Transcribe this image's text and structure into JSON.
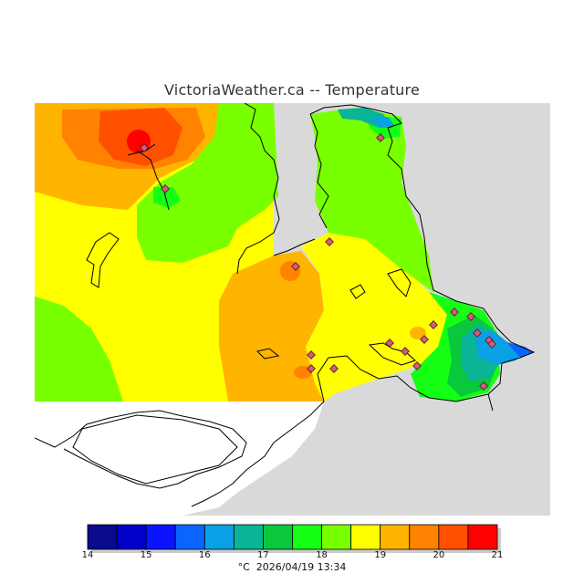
{
  "title": "VictoriaWeather.ca -- Temperature",
  "unit": "°C",
  "timestamp": "2026/04/19 13:34",
  "legend": {
    "colors": [
      "#0a0a8c",
      "#0000c8",
      "#0a14ff",
      "#0a64ff",
      "#0aa0e6",
      "#0ab496",
      "#0ac83c",
      "#14ff14",
      "#78ff00",
      "#ffff00",
      "#ffb400",
      "#ff8200",
      "#ff5000",
      "#ff0000"
    ],
    "tick_labels": [
      "14",
      "15",
      "16",
      "17",
      "18",
      "19",
      "20",
      "21"
    ]
  },
  "map_colors": {
    "land_no_data": "#d9d9d9",
    "water": "#ffffff",
    "station_marker": "#b04060",
    "coastline": "#000000"
  }
}
